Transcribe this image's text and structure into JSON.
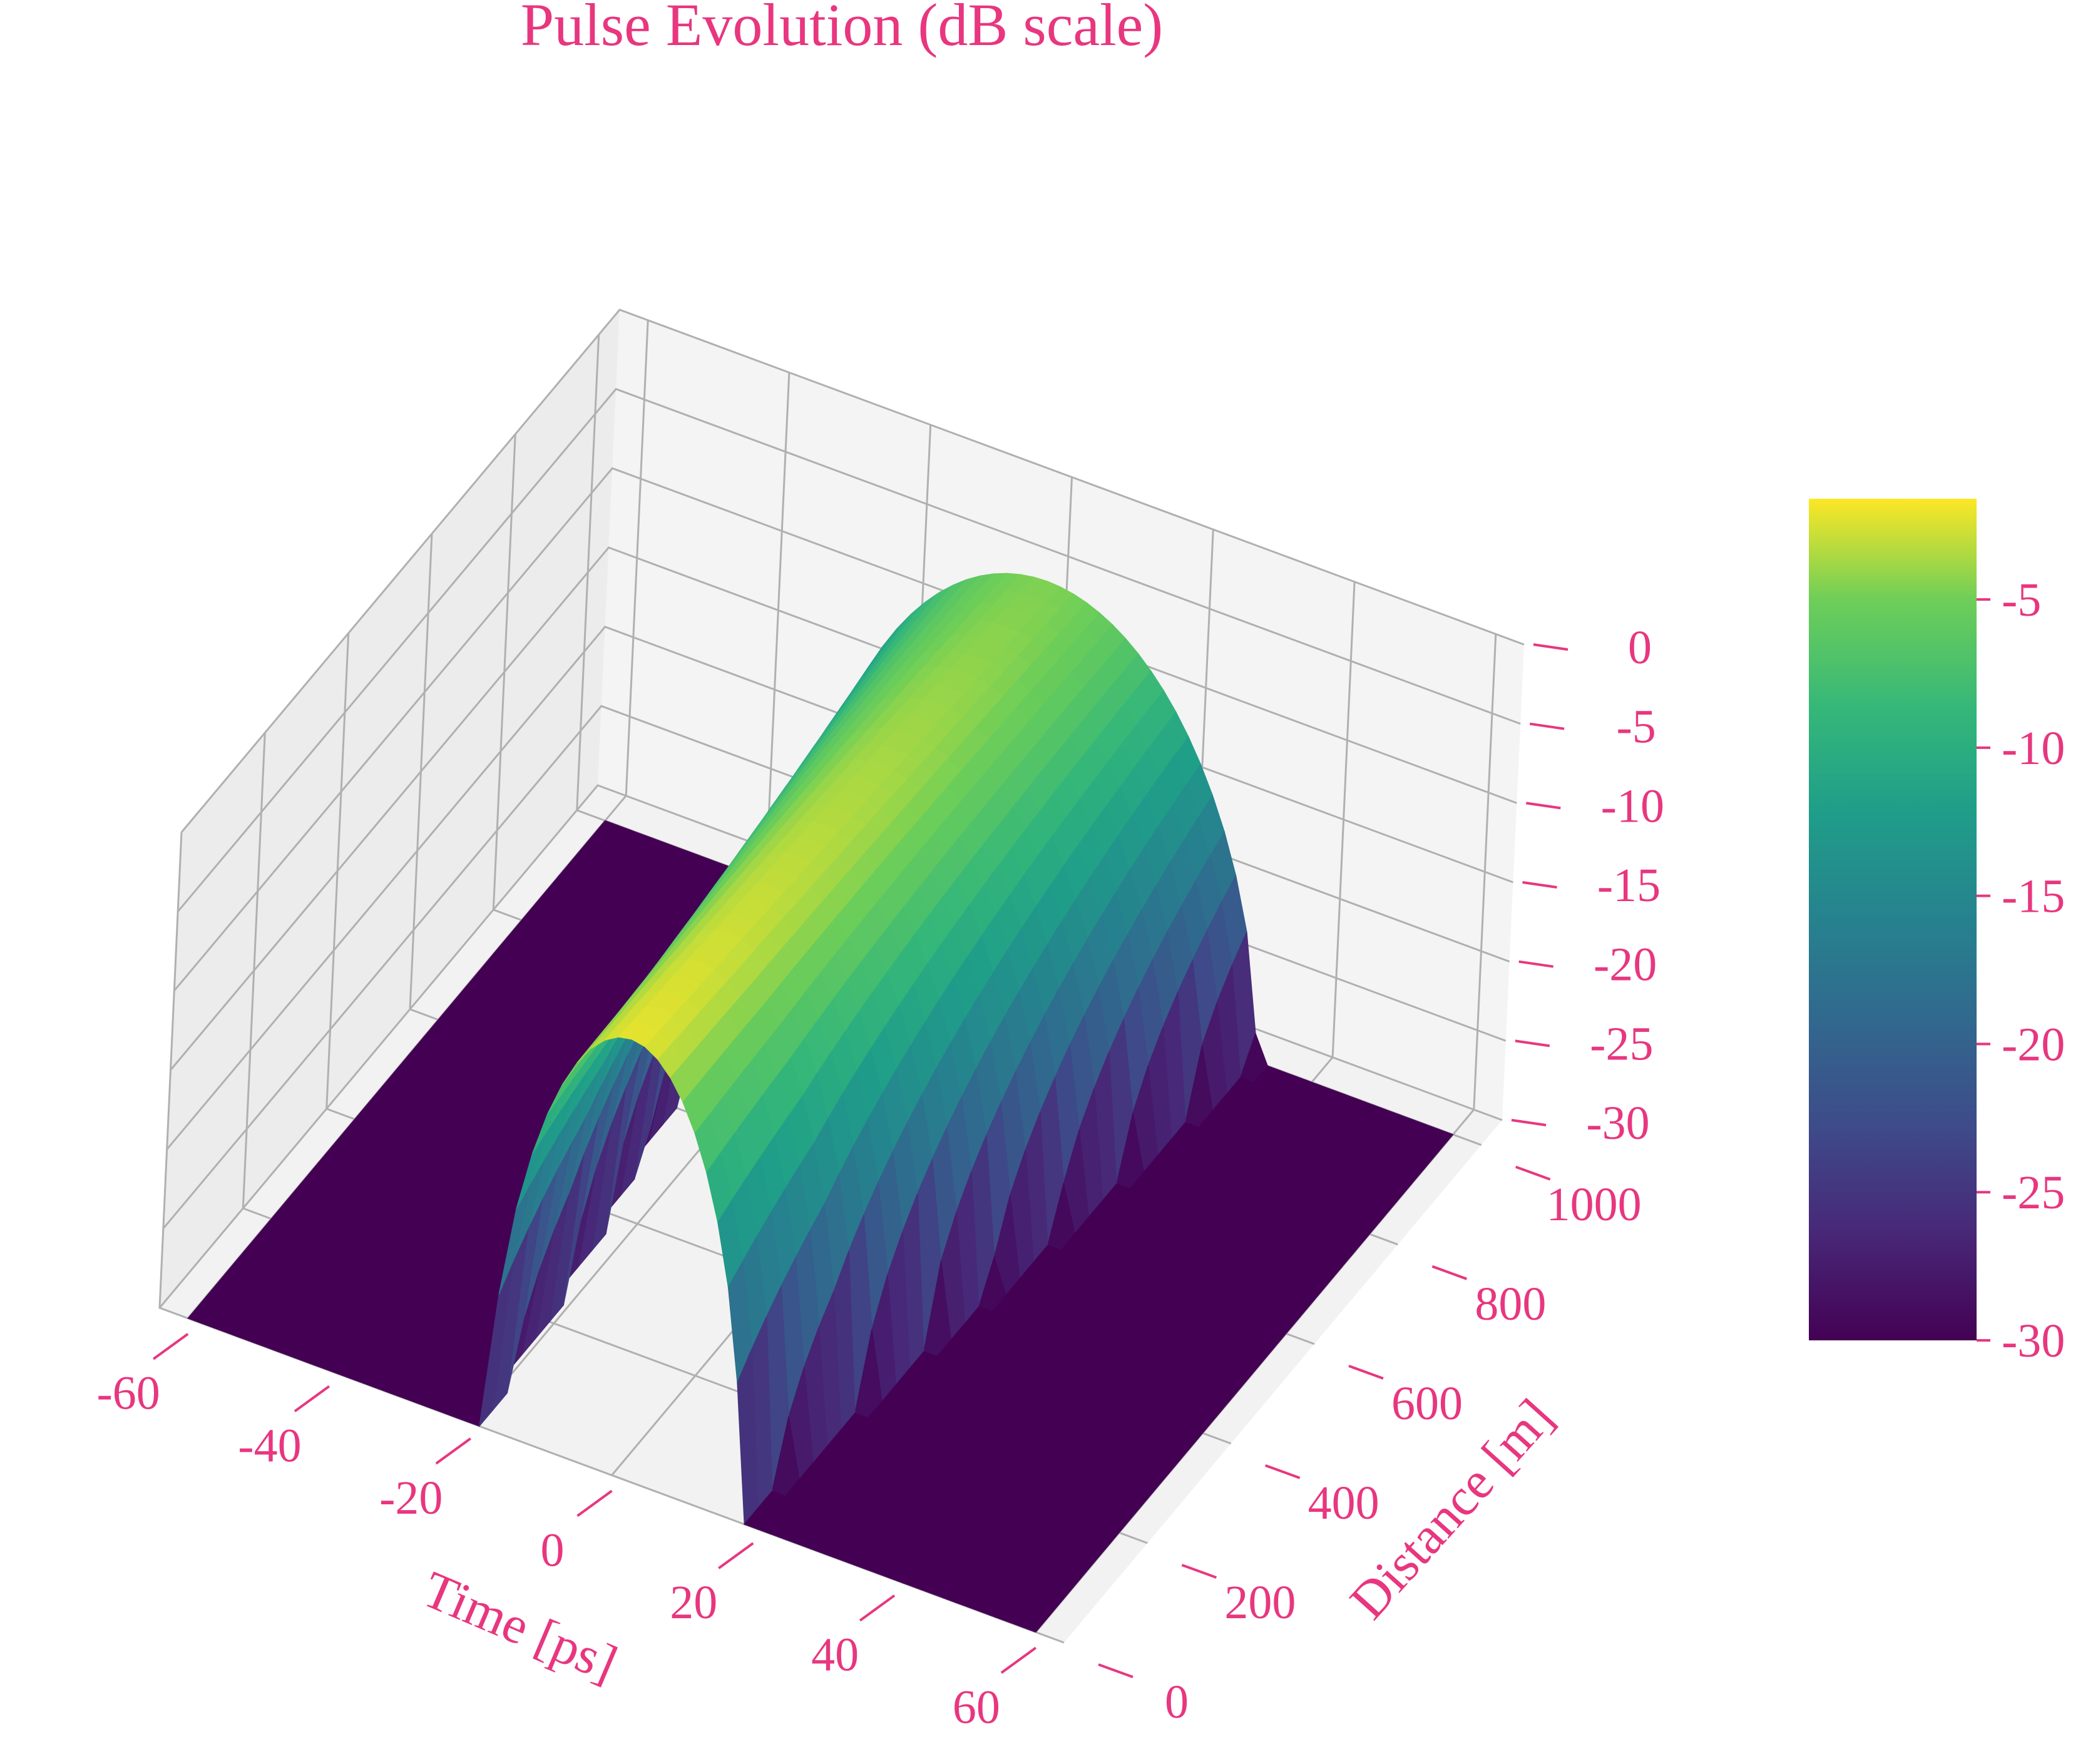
{
  "chart_data": {
    "type": "surface3d",
    "title": "Pulse Evolution (dB scale)",
    "xlabel": "Time [ps]",
    "ylabel": "Distance [m]",
    "zlabel": "",
    "xticks": [
      "-60",
      "-40",
      "-20",
      "0",
      "20",
      "40",
      "60"
    ],
    "yticks": [
      "0",
      "200",
      "400",
      "600",
      "800",
      "1000"
    ],
    "zticks": [
      "0",
      "-5",
      "-10",
      "-15",
      "-20",
      "-25",
      "-30"
    ],
    "colorbar_ticks": [
      "-5",
      "-10",
      "-15",
      "-20",
      "-25",
      "-30"
    ],
    "xlim": [
      -64,
      64
    ],
    "ylim": [
      0,
      1050
    ],
    "zlim": [
      -30,
      0
    ],
    "colormap": "viridis",
    "grid": true,
    "surface_samples": {
      "distance_m": [
        0,
        200,
        400,
        600,
        800,
        1000
      ],
      "half_width_at_minus30dB_ps": [
        18,
        20,
        23,
        26,
        29,
        32
      ],
      "peak_dB": [
        -2.5,
        -3.0,
        -3.5,
        -4.0,
        -4.5,
        -5.0
      ]
    }
  },
  "colors": {
    "text": "#e8367f",
    "pane": "#f2f2f2",
    "grid": "#b0b0b0"
  }
}
